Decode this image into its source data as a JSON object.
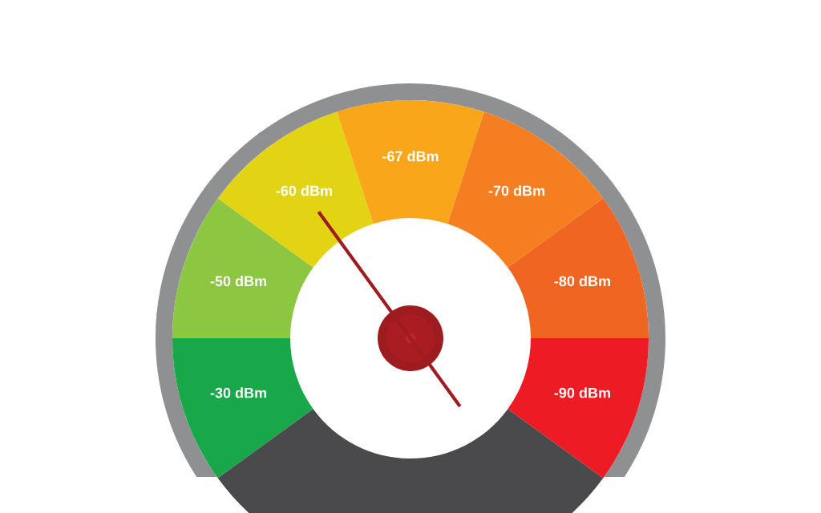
{
  "chart_data": {
    "type": "donut",
    "categories": [
      "-30 dBm",
      "-50 dBm",
      "-60 dBm",
      "-67 dBm",
      "-70 dBm",
      "-80 dBm",
      "-90 dBm",
      null
    ],
    "values": [
      10,
      10,
      10,
      10,
      10,
      10,
      10,
      30
    ],
    "colors": [
      "#18a84a",
      "#8dc641",
      "#e2d414",
      "#f9a61b",
      "#f57f20",
      "#f16522",
      "#ed1c24",
      "#4a4a4c"
    ],
    "needle": "-60 dBm"
  }
}
